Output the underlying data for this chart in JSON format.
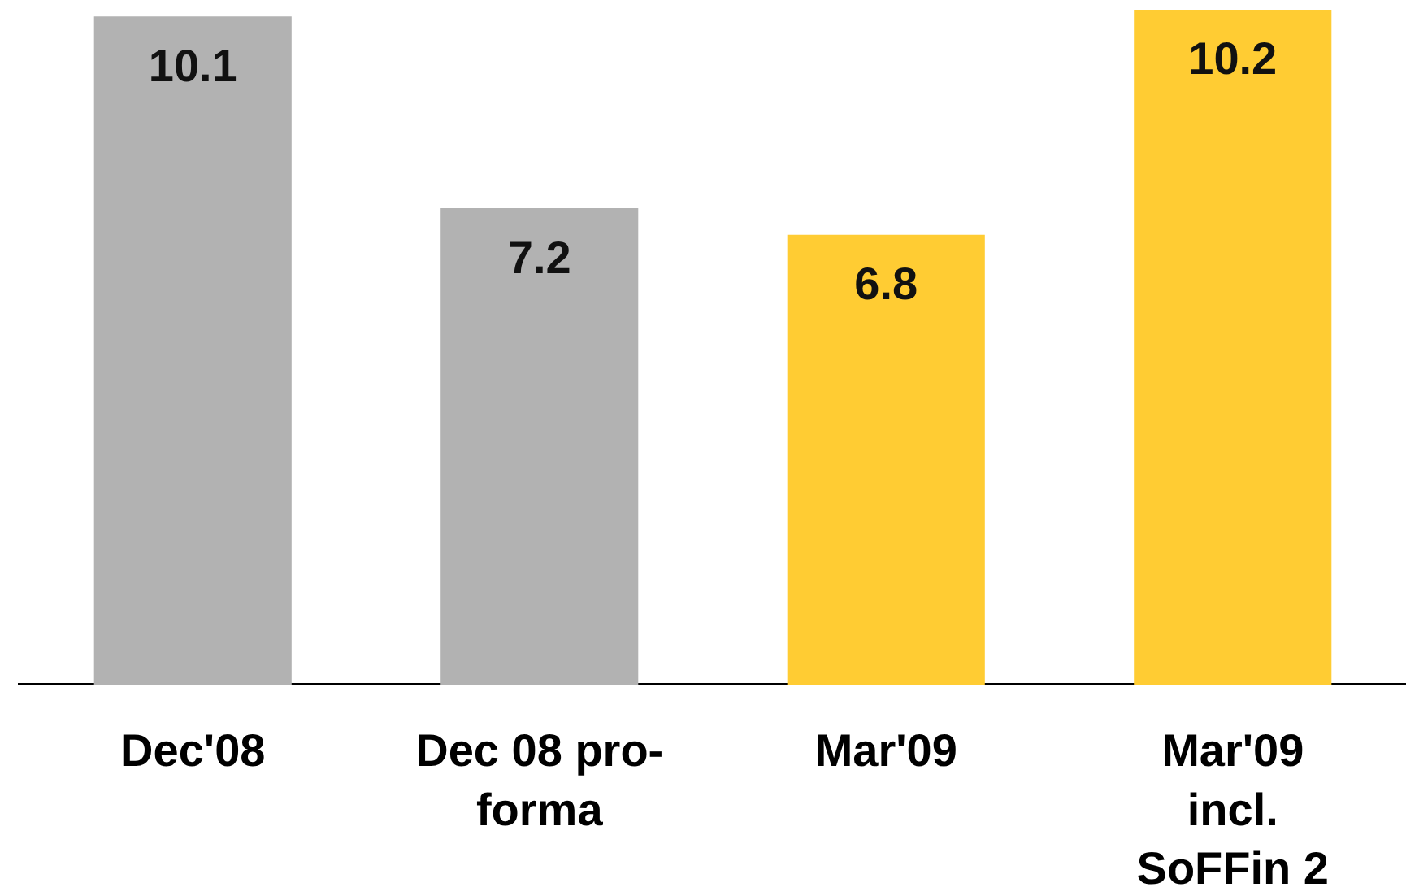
{
  "chart_data": {
    "type": "bar",
    "categories": [
      "Dec'08",
      "Dec 08 pro-\nforma",
      "Mar'09",
      "Mar'09\nincl.\nSoFFin 2"
    ],
    "values": [
      10.1,
      7.2,
      6.8,
      10.2
    ],
    "colors": [
      "#b2b2b2",
      "#b2b2b2",
      "#ffcc33",
      "#ffcc33"
    ],
    "data_labels": true
  }
}
